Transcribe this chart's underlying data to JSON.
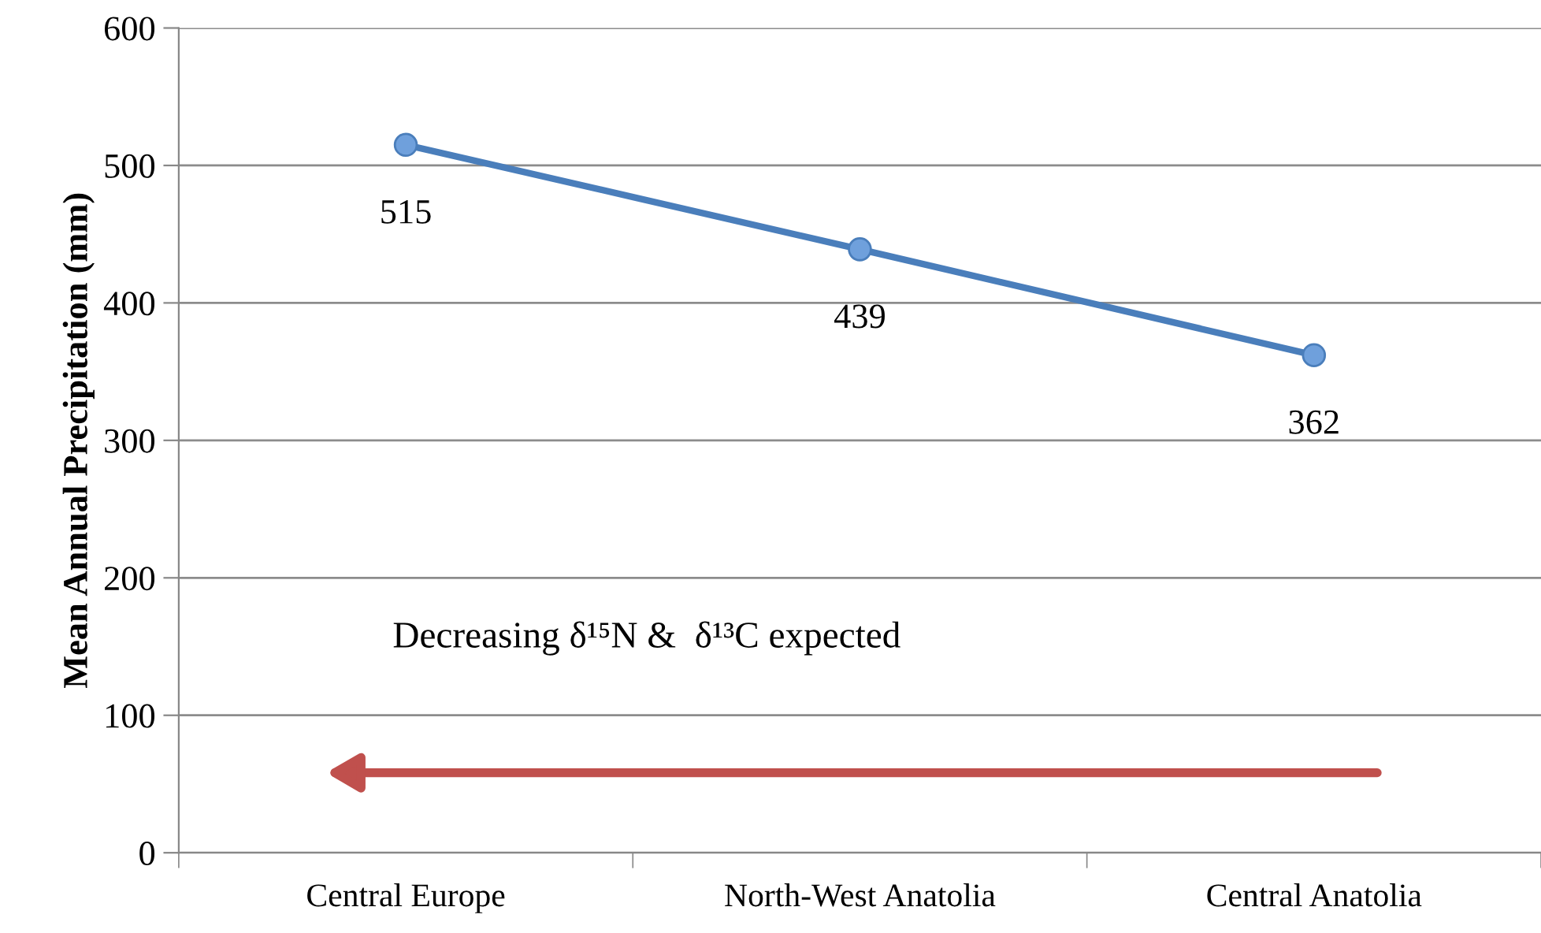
{
  "chart_data": {
    "type": "line",
    "ylabel": "Mean Annual Precipitation (mm)",
    "categories": [
      "Central Europe",
      "North-West Anatolia",
      "Central Anatolia"
    ],
    "series": [
      {
        "color": "#4a7ebb",
        "values": [
          515,
          439,
          362
        ]
      }
    ],
    "ylim": [
      0,
      600
    ],
    "yticks": [
      0,
      100,
      200,
      300,
      400,
      500,
      600
    ],
    "grid": "y",
    "marker": "circle",
    "line_style": "solid",
    "data_labels": true,
    "annotations": [
      "Decreasing δ¹⁵N &  δ¹³C expected"
    ]
  }
}
